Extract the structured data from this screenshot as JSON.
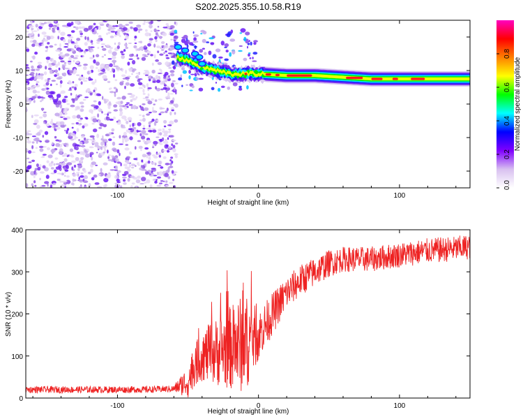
{
  "title": "S202.2025.355.10.58.R19",
  "chart_data": [
    {
      "type": "heatmap",
      "xlabel": "Height of straight line (km)",
      "ylabel": "Frequency (Hz)",
      "xlim": [
        -165,
        150
      ],
      "ylim": [
        -25,
        25
      ],
      "xticks": [
        -100,
        0,
        100
      ],
      "yticks": [
        -20,
        -10,
        0,
        10,
        20
      ],
      "colorbar": {
        "label": "Normalized spectral amplitude",
        "range": [
          0,
          1
        ],
        "ticks": [
          0.0,
          0.2,
          0.4,
          0.6,
          0.8
        ],
        "tick_labels": [
          "0.0",
          "0.2",
          "0.4",
          "0.6",
          "0.8"
        ],
        "colormap": [
          "#ffffff",
          "#d8c0f0",
          "#8000ff",
          "#0000ff",
          "#00ffff",
          "#00ff00",
          "#ffff00",
          "#ff8000",
          "#ff0000",
          "#ff00c0"
        ]
      },
      "features": {
        "noise_region_x": [
          -165,
          -62
        ],
        "carrier_track": [
          {
            "x": -58,
            "freq": 14
          },
          {
            "x": -50,
            "freq": 13
          },
          {
            "x": -40,
            "freq": 11
          },
          {
            "x": -30,
            "freq": 10
          },
          {
            "x": -20,
            "freq": 9
          },
          {
            "x": -10,
            "freq": 9
          },
          {
            "x": 0,
            "freq": 9
          },
          {
            "x": 20,
            "freq": 8.5
          },
          {
            "x": 40,
            "freq": 8.5
          },
          {
            "x": 60,
            "freq": 8
          },
          {
            "x": 80,
            "freq": 7.5
          },
          {
            "x": 100,
            "freq": 7.5
          },
          {
            "x": 120,
            "freq": 7.5
          },
          {
            "x": 150,
            "freq": 7.5
          }
        ]
      }
    },
    {
      "type": "line",
      "xlabel": "Height of straight line (km)",
      "ylabel": "SNR (10 * v/v)",
      "xlim": [
        -165,
        150
      ],
      "ylim": [
        0,
        400
      ],
      "xticks": [
        -100,
        0,
        100
      ],
      "yticks": [
        0,
        100,
        200,
        300,
        400
      ],
      "series": [
        {
          "color": "#ee2222",
          "trend": [
            {
              "x": -165,
              "y": 20
            },
            {
              "x": -120,
              "y": 20
            },
            {
              "x": -80,
              "y": 20
            },
            {
              "x": -60,
              "y": 22
            },
            {
              "x": -50,
              "y": 40
            },
            {
              "x": -45,
              "y": 80
            },
            {
              "x": -40,
              "y": 100
            },
            {
              "x": -30,
              "y": 110
            },
            {
              "x": -20,
              "y": 120
            },
            {
              "x": -10,
              "y": 130
            },
            {
              "x": 0,
              "y": 150
            },
            {
              "x": 10,
              "y": 200
            },
            {
              "x": 20,
              "y": 250
            },
            {
              "x": 30,
              "y": 280
            },
            {
              "x": 40,
              "y": 300
            },
            {
              "x": 50,
              "y": 320
            },
            {
              "x": 60,
              "y": 330
            },
            {
              "x": 70,
              "y": 330
            },
            {
              "x": 80,
              "y": 330
            },
            {
              "x": 100,
              "y": 340
            },
            {
              "x": 120,
              "y": 350
            },
            {
              "x": 140,
              "y": 355
            },
            {
              "x": 150,
              "y": 360
            }
          ],
          "noise_amplitude": [
            {
              "x": -165,
              "a": 8
            },
            {
              "x": -60,
              "a": 8
            },
            {
              "x": -50,
              "a": 40
            },
            {
              "x": -30,
              "a": 80
            },
            {
              "x": -10,
              "a": 120
            },
            {
              "x": 0,
              "a": 60
            },
            {
              "x": 20,
              "a": 40
            },
            {
              "x": 60,
              "a": 30
            },
            {
              "x": 150,
              "a": 30
            }
          ]
        }
      ]
    }
  ]
}
